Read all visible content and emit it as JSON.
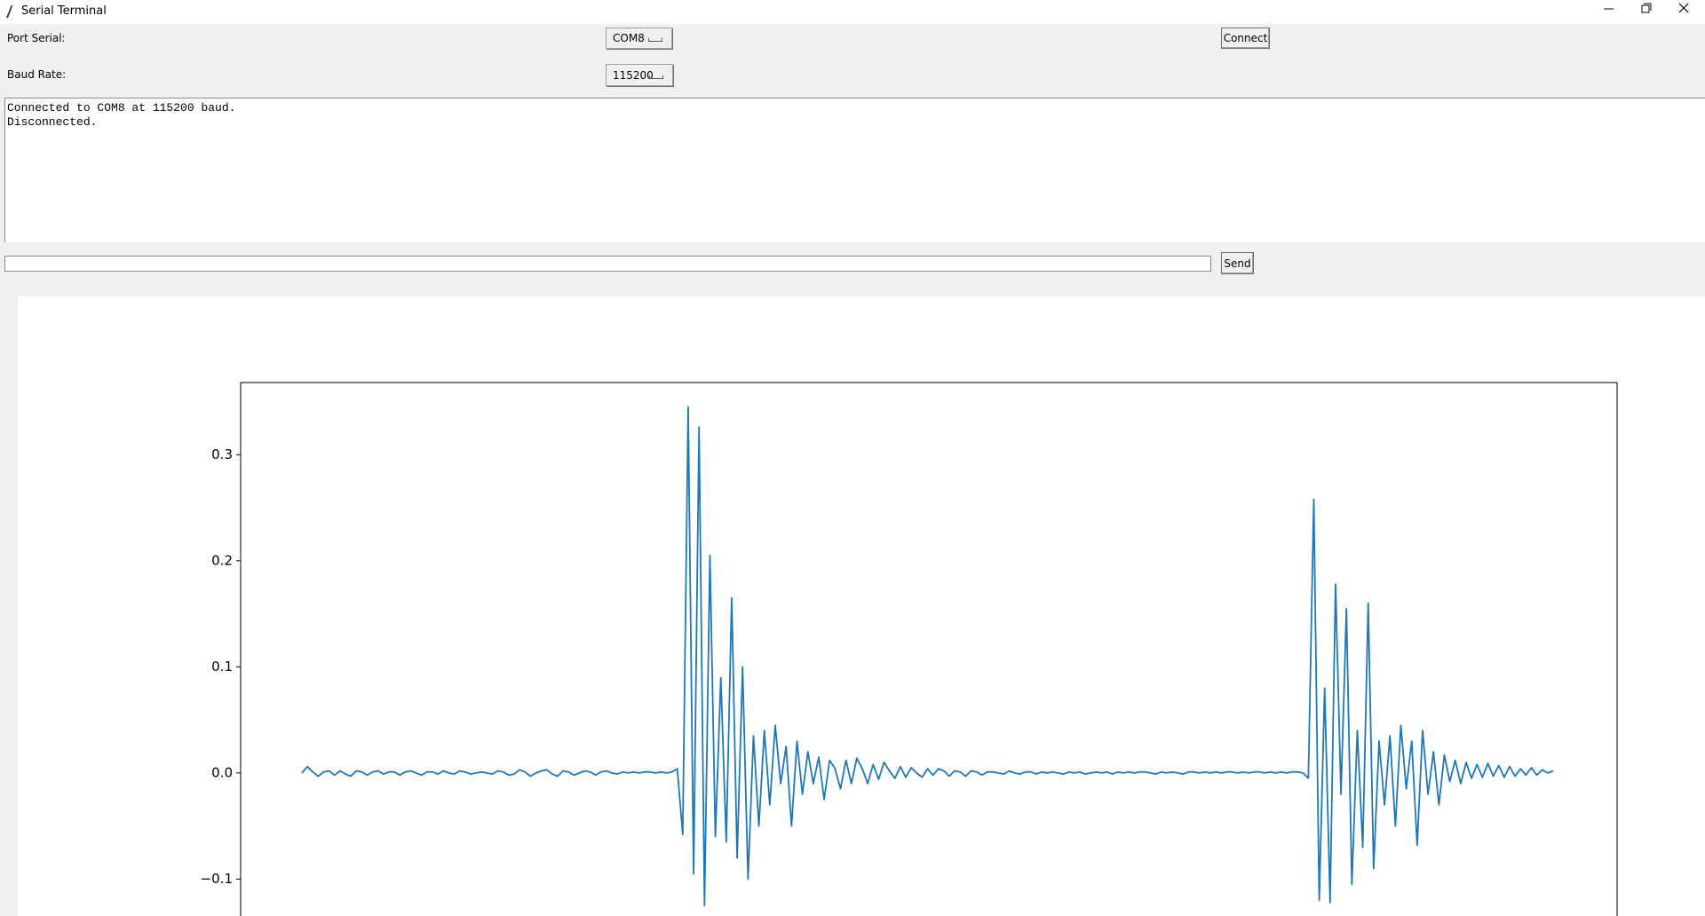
{
  "window": {
    "title": "Serial Terminal"
  },
  "controls": {
    "port_label": "Port Serial:",
    "port_value": "COM8",
    "connect": "Connect",
    "baud_label": "Baud Rate:",
    "baud_value": "115200"
  },
  "terminal": {
    "lines": [
      "Connected to COM8 at 115200 baud.",
      "Disconnected."
    ]
  },
  "input": {
    "send": "Send"
  },
  "chart_data": {
    "type": "line",
    "color": "#1f77b4",
    "ylim": [
      -0.149,
      0.368
    ],
    "yticks": [
      {
        "value": -0.1,
        "label": "−0.1"
      },
      {
        "value": 0,
        "label": "0.0"
      },
      0.1,
      0.2,
      0.3
    ],
    "values": [
      0,
      0.006,
      0.001,
      -0.003,
      0.001,
      0.002,
      -0.002,
      0.002,
      -0.001,
      -0.003,
      0.002,
      0.001,
      -0.002,
      0.001,
      0.002,
      -0.001,
      0.001,
      0.001,
      -0.002,
      0.001,
      0.002,
      0,
      -0.002,
      0.001,
      0.001,
      -0.001,
      0.002,
      0,
      -0.001,
      0.002,
      0.001,
      -0.001,
      0,
      0.001,
      0,
      -0.001,
      0.002,
      0.001,
      -0.002,
      -0.001,
      0.003,
      0.001,
      -0.003,
      0,
      0.002,
      0.003,
      -0.001,
      -0.003,
      0.002,
      0.001,
      -0.002,
      0,
      0.002,
      0.001,
      -0.002,
      0.001,
      0.002,
      0,
      -0.001,
      0.001,
      0,
      0.001,
      0,
      0.001,
      0.001,
      0,
      0.001,
      0,
      0.001,
      0.004,
      -0.058,
      0.345,
      -0.095,
      0.326,
      -0.125,
      0.205,
      -0.06,
      0.09,
      -0.065,
      0.165,
      -0.08,
      0.1,
      -0.1,
      0.035,
      -0.05,
      0.04,
      -0.03,
      0.045,
      -0.01,
      0.025,
      -0.05,
      0.03,
      -0.02,
      0.02,
      -0.01,
      0.015,
      -0.025,
      0.012,
      0.004,
      -0.015,
      0.012,
      -0.01,
      0.014,
      0.004,
      -0.01,
      0.008,
      -0.006,
      0.01,
      0.002,
      -0.005,
      0.006,
      -0.004,
      0.005,
      0,
      -0.004,
      0.004,
      -0.002,
      0.004,
      0.002,
      -0.003,
      0.002,
      0.001,
      -0.003,
      0.002,
      0.001,
      -0.002,
      0.001,
      0.001,
      0,
      -0.001,
      0.002,
      0,
      -0.001,
      0.001,
      0.001,
      -0.001,
      0.001,
      0,
      0.001,
      0,
      -0.001,
      0.001,
      0,
      0.001,
      -0.001,
      0,
      0.001,
      0,
      0.001,
      -0.001,
      0.001,
      0,
      0.001,
      0,
      0.001,
      0.001,
      0,
      -0.001,
      0.001,
      0,
      0.001,
      0,
      -0.001,
      0.001,
      0.001,
      0,
      0.001,
      0,
      0.001,
      0,
      0.001,
      0.001,
      0,
      0.001,
      0,
      0.001,
      0.001,
      0,
      0.001,
      0,
      0.001,
      0,
      0.001,
      0.001,
      0,
      -0.005,
      0.258,
      -0.12,
      0.08,
      -0.122,
      0.178,
      -0.02,
      0.155,
      -0.105,
      0.04,
      -0.07,
      0.16,
      -0.09,
      0.03,
      -0.03,
      0.035,
      -0.05,
      0.045,
      -0.015,
      0.03,
      -0.068,
      0.04,
      -0.02,
      0.02,
      -0.03,
      0.017,
      -0.008,
      0.012,
      -0.01,
      0.01,
      -0.005,
      0.008,
      -0.004,
      0.009,
      -0.003,
      0.007,
      -0.004,
      0.006,
      -0.003,
      0.004,
      -0.002,
      0.005,
      -0.002,
      0.003,
      0,
      0.002
    ]
  }
}
